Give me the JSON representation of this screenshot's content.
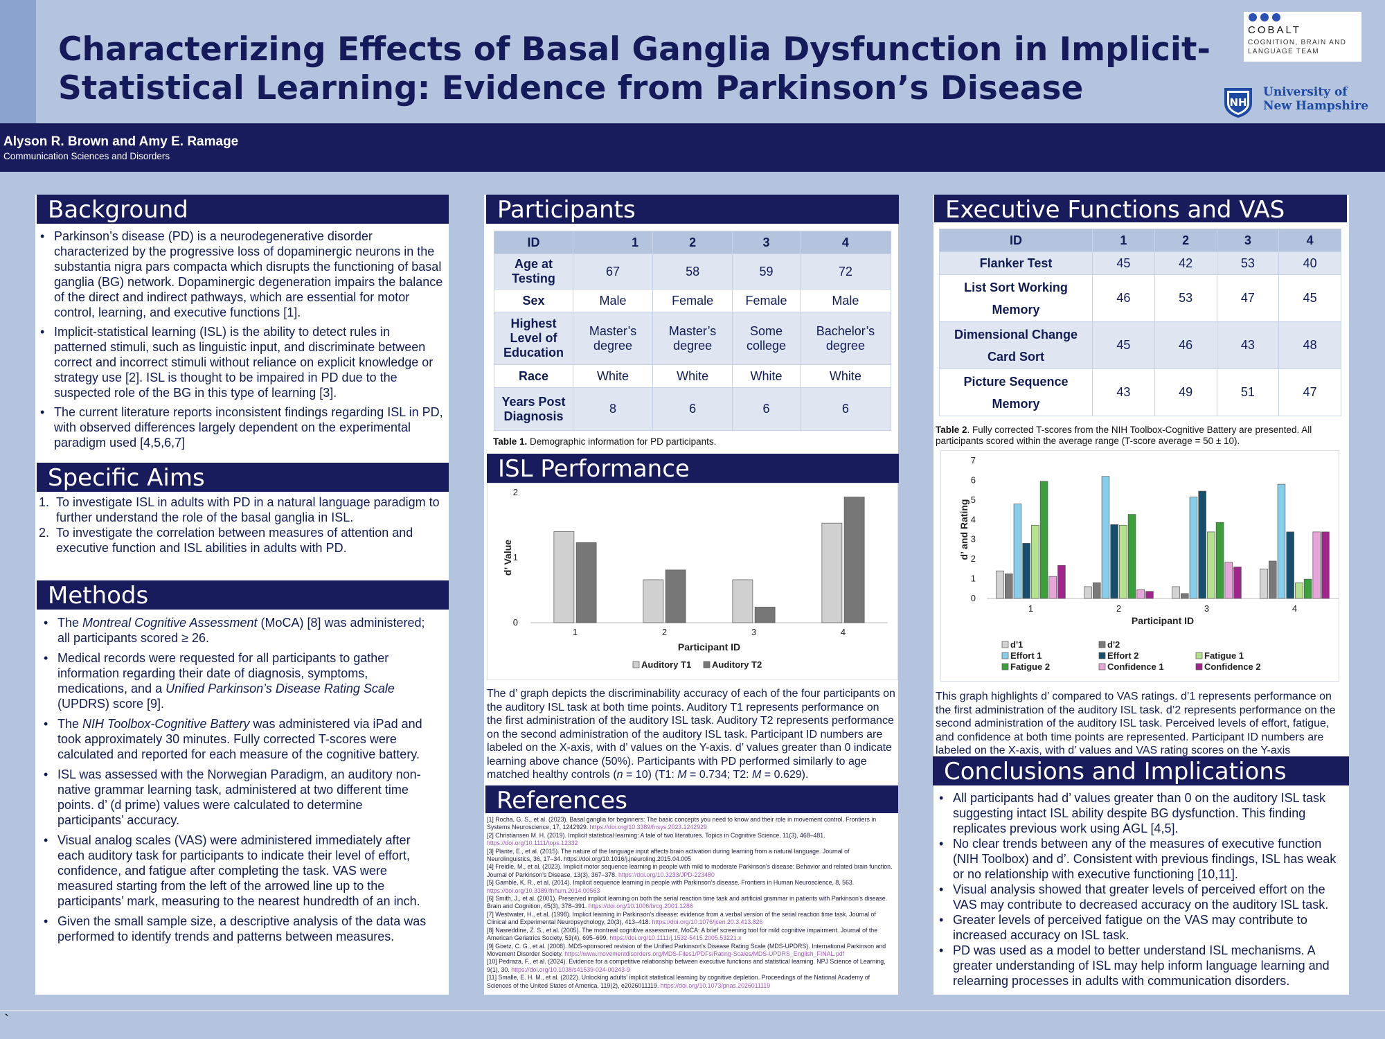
{
  "title": "Characterizing Effects of Basal Ganglia Dysfunction in Implicit-Statistical Learning: Evidence from Parkinson’s Disease",
  "logos": {
    "cobalt_name": "COBALT",
    "cobalt_sub": "COGNITION, BRAIN AND LANGUAGE TEAM",
    "unh_line1": "University of",
    "unh_line2": "New Hampshire",
    "unh_mark": "NH"
  },
  "authors": "Alyson R. Brown and Amy E. Ramage",
  "department": "Communication Sciences and Disorders",
  "background": {
    "heading": "Background",
    "items": [
      "Parkinson’s disease (PD) is a neurodegenerative disorder characterized by the progressive loss of dopaminergic neurons in the substantia nigra pars compacta which disrupts the functioning of basal ganglia (BG) network. Dopaminergic degeneration impairs the balance of the direct and indirect pathways, which are essential for motor control, learning, and executive functions [1].",
      "Implicit-statistical learning (ISL) is the ability to detect rules in patterned stimuli, such as linguistic input, and discriminate between correct and incorrect stimuli without reliance on explicit knowledge or strategy use [2]. ISL is thought to be impaired in PD due to the suspected role of the BG in this type of learning [3].",
      "The current literature reports inconsistent findings regarding ISL in PD, with observed differences largely dependent on the experimental paradigm used [4,5,6,7]"
    ]
  },
  "aims": {
    "heading": "Specific Aims",
    "items": [
      "To investigate ISL in adults with PD in a natural language paradigm to further understand the role of the basal ganglia in ISL.",
      "To investigate the correlation between measures of attention and executive function and ISL abilities in adults with PD."
    ]
  },
  "methods": {
    "heading": "Methods",
    "m1_a": "The ",
    "m1_b": "Montreal Cognitive Assessment",
    "m1_c": " (MoCA) [8] was administered; all participants scored ≥ 26.",
    "m2_a": "Medical records were requested for all participants to gather information regarding their date of diagnosis, symptoms, medications, and a ",
    "m2_b": "Unified Parkinson’s Disease Rating Scale",
    "m2_c": " (UPDRS) score [9].",
    "m3_a": "The ",
    "m3_b": "NIH Toolbox-Cognitive Battery",
    "m3_c": " was administered via iPad and took approximately 30 minutes. Fully corrected T-scores were calculated and reported for each measure of the cognitive battery.",
    "m4": "ISL was assessed with the Norwegian Paradigm, an auditory non-native grammar learning task, administered at two different time points. d’ (d prime) values were calculated to determine participants’ accuracy.",
    "m5": "Visual analog scales (VAS) were administered immediately after each auditory task for participants to indicate their level of effort, confidence, and fatigue after completing the task. VAS were measured starting from the left of the arrowed line up to the participants’ mark, measuring to the nearest hundredth of an inch.",
    "m6": "Given the small sample size, a descriptive analysis of the data was performed to identify trends and patterns between measures."
  },
  "participants": {
    "heading": "Participants",
    "header": [
      "ID",
      "1",
      "2",
      "3",
      "4"
    ],
    "rows": [
      [
        "Age at Testing",
        "67",
        "58",
        "59",
        "72"
      ],
      [
        "Sex",
        "Male",
        "Female",
        "Female",
        "Male"
      ],
      [
        "Highest Level of Education",
        "Master’s degree",
        "Master’s degree",
        "Some college",
        "Bachelor’s degree"
      ],
      [
        "Race",
        "White",
        "White",
        "White",
        "White"
      ],
      [
        "Years Post Diagnosis",
        "8",
        "6",
        "6",
        "6"
      ]
    ],
    "caption_bold": "Table 1.",
    "caption_text": " Demographic information for PD participants."
  },
  "isl": {
    "heading": "ISL Performance",
    "description_a": "The d’ graph depicts the discriminability accuracy of each of the four participants on the auditory ISL task at both time points. Auditory T1 represents performance on the first administration of the auditory ISL task. Auditory T2 represents performance on the second administration of the auditory ISL task. Participant ID numbers are labeled on the X-axis, with d’ values on the Y-axis. d’ values greater than 0 indicate learning above chance (50%). Participants with PD performed similarly to age matched healthy controls (",
    "description_n": "n",
    "description_b": " = 10) (T1: ",
    "description_m1": "M",
    "description_c": " = 0.734; T2: ",
    "description_m2": "M",
    "description_d": " = 0.629)."
  },
  "exec": {
    "heading": "Executive Functions and VAS",
    "header": [
      "ID",
      "1",
      "2",
      "3",
      "4"
    ],
    "rows": [
      [
        "Flanker Test",
        "45",
        "42",
        "53",
        "40"
      ],
      [
        "List Sort Working Memory",
        "46",
        "53",
        "47",
        "45"
      ],
      [
        "Dimensional Change Card Sort",
        "45",
        "46",
        "43",
        "48"
      ],
      [
        "Picture Sequence Memory",
        "43",
        "49",
        "51",
        "47"
      ]
    ],
    "caption_bold": "Table 2",
    "caption_text": ". Fully corrected T-scores from the NIH Toolbox-Cognitive Battery are presented. All participants scored within the average range (T-score average = 50 ± 10).",
    "description": "This graph highlights d’ compared to VAS ratings. d’1 represents performance on the first administration of the auditory ISL task. d’2 represents performance on the second administration of the auditory ISL task. Perceived levels of effort, fatigue, and confidence at both time points are represented. Participant ID numbers are labeled on the X-axis, with d’ values and VAS rating scores on the Y-axis"
  },
  "conclusions": {
    "heading": "Conclusions and Implications",
    "items": [
      "All participants had d’ values greater than 0 on the auditory ISL task suggesting intact ISL ability despite BG dysfunction. This finding replicates previous work using AGL [4,5].",
      "No clear trends between any of the measures of executive function (NIH Toolbox) and d’. Consistent with previous findings, ISL has weak or no relationship with executive functioning [10,11].",
      "Visual analysis showed that greater levels of perceived effort on the VAS may contribute to decreased accuracy on the auditory ISL task.",
      "Greater levels of perceived fatigue on the VAS may contribute to increased accuracy on ISL task.",
      "PD was used as a model to better understand ISL mechanisms. A greater understanding of ISL may help inform language learning and relearning processes in adults with communication disorders."
    ]
  },
  "references": {
    "heading": "References",
    "items": [
      {
        "t": "[1] Rocha, G. S., et al. (2023). Basal ganglia for beginners: The basic concepts you need to know and their role in movement control. Frontiers in Systems Neuroscience, 17, 1242929. ",
        "u": "https://doi.org/10.3389/fnsys.2023.1242929"
      },
      {
        "t": "[2] Christiansen M. H. (2019). Implicit statistical learning: A tale of two literatures. Topics in Cognitive Science, 11(3), 468–481. ",
        "u": "https://doi.org/10.1111/tops.12332"
      },
      {
        "t": "[3] Plante, E., et al. (2015). The nature of the language input affects brain activation during learning from a natural language. Journal of Neurolinguistics, 36, 17–34. https://doi.org/10.1016/j.jneuroling.2015.04.005",
        "u": ""
      },
      {
        "t": "[4] Freidle, M., et al. (2023). Implicit motor sequence learning in people with mild to moderate Parkinson's disease: Behavior and related brain function. Journal of Parkinson's Disease, 13(3), 367–378. ",
        "u": "https://doi.org/10.3233/JPD-223480"
      },
      {
        "t": "[5] Gamble, K. R., et al. (2014). Implicit sequence learning in people with Parkinson's disease. Frontiers in Human Neuroscience, 8, 563. ",
        "u": "https://doi.org/10.3389/fnhum.2014.00563"
      },
      {
        "t": "[6] Smith, J., et al. (2001). Preserved implicit learning on both the serial reaction time task and artificial grammar in patients with Parkinson's disease. Brain and Cognition, 45(3), 378–391. ",
        "u": "https://doi.org/10.1006/brcg.2001.1286"
      },
      {
        "t": "[7] Westwater, H., et al. (1998). Implicit learning in Parkinson's disease: evidence from a verbal version of the serial reaction time task. Journal of Clinical and Experimental Neuropsychology, 20(3), 413–418. ",
        "u": "https://doi.org/10.1076/jcen.20.3.413.826"
      },
      {
        "t": "[8] Nasreddine, Z. S., et al. (2005). The montreal cognitive assessment, MoCA: A brief screening tool for mild cognitive impairment. Journal of the American Geriatrics Society, 53(4), 695–699. ",
        "u": "https://doi.org/10.1111/j.1532-5415.2005.53221.x"
      },
      {
        "t": "[9] Goetz, C. G., et al. (2008). MDS-sponsored revision of the Unified Parkinson's Disease Rating Scale (MDS-UPDRS). International Parkinson and Movement Disorder Society. ",
        "u": "https://www.movementdisorders.org/MDS-Files1/PDFs/Rating-Scales/MDS-UPDRS_English_FINAL.pdf"
      },
      {
        "t": "[10] Pedraza, F., et al. (2024). Evidence for a competitive relationship between executive functions and statistical learning. NPJ Science of Learning, 9(1), 30. ",
        "u": "https://doi.org/10.1038/s41539-024-00243-9"
      },
      {
        "t": "[11] Smalle, E. H. M., et al. (2022). Unlocking adults' implicit statistical learning by cognitive depletion. Proceedings of the National Academy of Sciences of the United States of America, 119(2), e2026011119. ",
        "u": "https://doi.org/10.1073/pnas.2026011119"
      }
    ]
  },
  "footer_mark": "`",
  "chart_data": [
    {
      "type": "bar",
      "title": "",
      "categories": [
        "1",
        "2",
        "3",
        "4"
      ],
      "series": [
        {
          "name": "Auditory T1",
          "values": [
            1.4,
            0.66,
            0.66,
            1.53
          ],
          "color": "#d0d0d0"
        },
        {
          "name": "Auditory T2",
          "values": [
            1.23,
            0.81,
            0.24,
            1.93
          ],
          "color": "#777777"
        }
      ],
      "xlabel": "Participant ID",
      "ylabel": "d’ Value",
      "yticks": [
        "0",
        "1",
        "2"
      ],
      "ylim": [
        0,
        2
      ],
      "legend": "bottom"
    },
    {
      "type": "bar",
      "title": "",
      "categories": [
        "1",
        "2",
        "3",
        "4"
      ],
      "series": [
        {
          "name": "d'1",
          "values": [
            1.4,
            0.6,
            0.6,
            1.5
          ],
          "color": "#d3d3d3"
        },
        {
          "name": "d'2",
          "values": [
            1.25,
            0.8,
            0.25,
            1.9
          ],
          "color": "#7a7a7a"
        },
        {
          "name": "Effort 1",
          "values": [
            4.8,
            6.2,
            5.15,
            5.8
          ],
          "color": "#87ceeb"
        },
        {
          "name": "Effort 2",
          "values": [
            2.8,
            3.75,
            5.45,
            3.38
          ],
          "color": "#17506e"
        },
        {
          "name": "Fatigue 1",
          "values": [
            3.72,
            3.72,
            3.38,
            0.8
          ],
          "color": "#b5e08c"
        },
        {
          "name": "Fatigue 2",
          "values": [
            5.95,
            4.27,
            3.86,
            0.98
          ],
          "color": "#3ba03b"
        },
        {
          "name": "Confidence 1",
          "values": [
            1.12,
            0.45,
            1.84,
            3.38
          ],
          "color": "#e7a6d9"
        },
        {
          "name": "Confidence 2",
          "values": [
            1.68,
            0.36,
            1.6,
            3.38
          ],
          "color": "#a0258c"
        }
      ],
      "xlabel": "Participant ID",
      "ylabel": "d’ and Rating",
      "yticks": [
        "0",
        "1",
        "2",
        "3",
        "4",
        "5",
        "6",
        "7"
      ],
      "ylim": [
        0,
        7
      ],
      "legend": "bottom"
    }
  ]
}
